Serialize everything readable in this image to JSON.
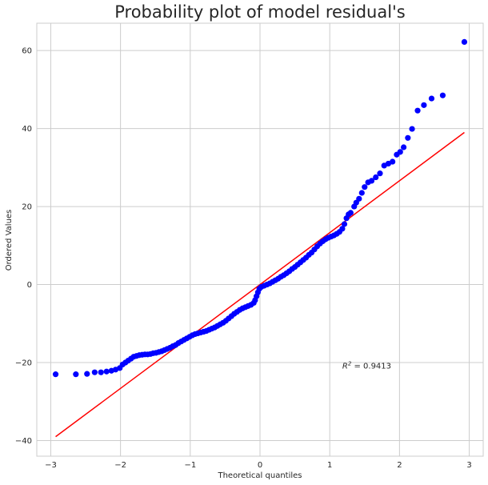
{
  "chart_data": {
    "type": "scatter",
    "title": "Probability plot of model residual's",
    "xlabel": "Theoretical quantiles",
    "ylabel": "Ordered Values",
    "xlim": [
      -3.2,
      3.2
    ],
    "ylim": [
      -44,
      67
    ],
    "x_ticks": [
      -3,
      -2,
      -1,
      0,
      1,
      2,
      3
    ],
    "y_ticks": [
      -40,
      -20,
      0,
      20,
      40,
      60
    ],
    "x_tick_labels": [
      "−3",
      "−2",
      "−1",
      "0",
      "1",
      "2",
      "3"
    ],
    "y_tick_labels": [
      "−40",
      "−20",
      "0",
      "20",
      "40",
      "60"
    ],
    "grid": true,
    "annotation": {
      "text_base": "R",
      "text_sup": "2",
      "text_rest": " = 0.9413",
      "x": 1.18,
      "y": -21.5
    },
    "fit_line": {
      "color": "#ff0000",
      "x": [
        -2.93,
        2.93
      ],
      "y": [
        -39,
        39
      ]
    },
    "series": [
      {
        "color": "#0000ff",
        "points": [
          [
            -2.93,
            -23
          ],
          [
            -2.64,
            -23
          ],
          [
            -2.48,
            -22.9
          ],
          [
            -2.37,
            -22.5
          ],
          [
            -2.28,
            -22.5
          ],
          [
            -2.2,
            -22.3
          ],
          [
            -2.13,
            -22.1
          ],
          [
            -2.07,
            -21.8
          ],
          [
            -2.01,
            -21.4
          ],
          [
            -1.97,
            -20.5
          ],
          [
            -1.93,
            -20
          ],
          [
            -1.89,
            -19.5
          ],
          [
            -1.85,
            -19
          ],
          [
            -1.81,
            -18.5
          ],
          [
            -1.77,
            -18.3
          ],
          [
            -1.73,
            -18.1
          ],
          [
            -1.69,
            -18
          ],
          [
            -1.65,
            -17.9
          ],
          [
            -1.61,
            -17.9
          ],
          [
            -1.57,
            -17.8
          ],
          [
            -1.53,
            -17.6
          ],
          [
            -1.49,
            -17.5
          ],
          [
            -1.45,
            -17.3
          ],
          [
            -1.41,
            -17.1
          ],
          [
            -1.37,
            -16.8
          ],
          [
            -1.33,
            -16.5
          ],
          [
            -1.29,
            -16.2
          ],
          [
            -1.25,
            -15.8
          ],
          [
            -1.21,
            -15.5
          ],
          [
            -1.17,
            -15
          ],
          [
            -1.13,
            -14.6
          ],
          [
            -1.09,
            -14.2
          ],
          [
            -1.05,
            -13.8
          ],
          [
            -1.01,
            -13.4
          ],
          [
            -0.97,
            -13
          ],
          [
            -0.93,
            -12.7
          ],
          [
            -0.89,
            -12.5
          ],
          [
            -0.85,
            -12.3
          ],
          [
            -0.81,
            -12.1
          ],
          [
            -0.77,
            -11.9
          ],
          [
            -0.73,
            -11.6
          ],
          [
            -0.69,
            -11.3
          ],
          [
            -0.65,
            -11
          ],
          [
            -0.61,
            -10.6
          ],
          [
            -0.57,
            -10.2
          ],
          [
            -0.53,
            -9.8
          ],
          [
            -0.49,
            -9.3
          ],
          [
            -0.45,
            -8.7
          ],
          [
            -0.41,
            -8.1
          ],
          [
            -0.37,
            -7.5
          ],
          [
            -0.33,
            -7
          ],
          [
            -0.29,
            -6.5
          ],
          [
            -0.25,
            -6.1
          ],
          [
            -0.21,
            -5.8
          ],
          [
            -0.17,
            -5.5
          ],
          [
            -0.13,
            -5.2
          ],
          [
            -0.09,
            -4.7
          ],
          [
            -0.07,
            -4
          ],
          [
            -0.05,
            -3
          ],
          [
            -0.03,
            -2
          ],
          [
            -0.01,
            -1.1
          ],
          [
            0.02,
            -0.6
          ],
          [
            0.06,
            -0.3
          ],
          [
            0.1,
            0
          ],
          [
            0.14,
            0.3
          ],
          [
            0.18,
            0.7
          ],
          [
            0.22,
            1.1
          ],
          [
            0.26,
            1.5
          ],
          [
            0.3,
            2
          ],
          [
            0.34,
            2.4
          ],
          [
            0.38,
            2.9
          ],
          [
            0.42,
            3.4
          ],
          [
            0.46,
            4
          ],
          [
            0.5,
            4.5
          ],
          [
            0.54,
            5.1
          ],
          [
            0.58,
            5.7
          ],
          [
            0.62,
            6.3
          ],
          [
            0.66,
            6.9
          ],
          [
            0.7,
            7.6
          ],
          [
            0.74,
            8.2
          ],
          [
            0.78,
            9
          ],
          [
            0.82,
            9.8
          ],
          [
            0.86,
            10.5
          ],
          [
            0.9,
            11.1
          ],
          [
            0.94,
            11.6
          ],
          [
            0.98,
            12
          ],
          [
            1.02,
            12.3
          ],
          [
            1.06,
            12.6
          ],
          [
            1.1,
            13
          ],
          [
            1.14,
            13.5
          ],
          [
            1.18,
            14.3
          ],
          [
            1.21,
            15.5
          ],
          [
            1.24,
            17
          ],
          [
            1.27,
            18
          ],
          [
            1.3,
            18.4
          ],
          [
            1.35,
            20
          ],
          [
            1.38,
            21
          ],
          [
            1.42,
            22
          ],
          [
            1.46,
            23.5
          ],
          [
            1.5,
            25
          ],
          [
            1.55,
            26.2
          ],
          [
            1.6,
            26.6
          ],
          [
            1.66,
            27.5
          ],
          [
            1.72,
            28.5
          ],
          [
            1.78,
            30.5
          ],
          [
            1.84,
            31
          ],
          [
            1.9,
            31.5
          ],
          [
            1.96,
            33.3
          ],
          [
            2.01,
            34
          ],
          [
            2.06,
            35.2
          ],
          [
            2.12,
            37.6
          ],
          [
            2.18,
            39.9
          ],
          [
            2.26,
            44.6
          ],
          [
            2.35,
            46
          ],
          [
            2.46,
            47.7
          ],
          [
            2.62,
            48.5
          ],
          [
            2.93,
            62.2
          ]
        ]
      }
    ]
  }
}
